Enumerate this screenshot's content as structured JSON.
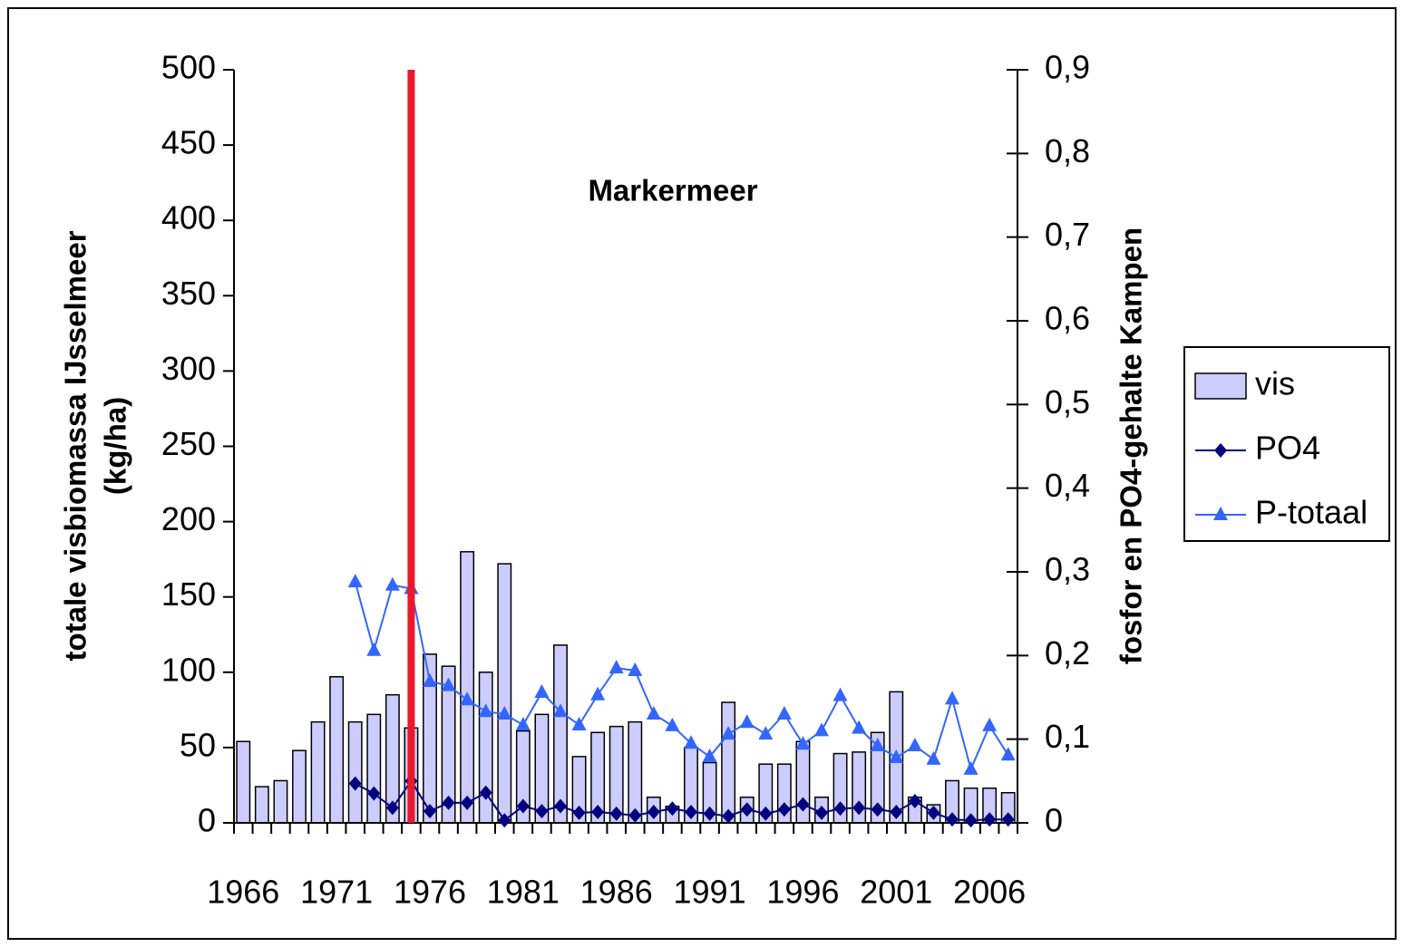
{
  "chart_data": {
    "type": "bar",
    "annotation": "Markermeer",
    "ylabel": [
      "totale visbiomassa IJsselmeer",
      "(kg/ha)"
    ],
    "y2label": "fosfor en PO4-gehalte Kampen",
    "x": [
      1966,
      1967,
      1968,
      1969,
      1970,
      1971,
      1972,
      1973,
      1974,
      1975,
      1976,
      1977,
      1978,
      1979,
      1980,
      1981,
      1982,
      1983,
      1984,
      1985,
      1986,
      1987,
      1988,
      1989,
      1990,
      1991,
      1992,
      1993,
      1994,
      1995,
      1996,
      1997,
      1998,
      1999,
      2000,
      2001,
      2002,
      2003,
      2004,
      2005,
      2006,
      2007
    ],
    "xlim": [
      1965.5,
      2007.5
    ],
    "xticks": [
      1966,
      1971,
      1976,
      1981,
      1986,
      1991,
      1996,
      2001,
      2006
    ],
    "ylim": [
      0,
      500
    ],
    "yticks": [
      0,
      50,
      100,
      150,
      200,
      250,
      300,
      350,
      400,
      450,
      500
    ],
    "y2lim": [
      0,
      0.9
    ],
    "y2ticks": [
      0,
      {
        "value": 0.1,
        "label": "0,1"
      },
      {
        "value": 0.2,
        "label": "0,2"
      },
      {
        "value": 0.3,
        "label": "0,3"
      },
      {
        "value": 0.4,
        "label": "0,4"
      },
      {
        "value": 0.5,
        "label": "0,5"
      },
      {
        "value": 0.6,
        "label": "0,6"
      },
      {
        "value": 0.7,
        "label": "0,7"
      },
      {
        "value": 0.8,
        "label": "0,8"
      },
      {
        "value": 0.9,
        "label": "0,9"
      }
    ],
    "vline": {
      "x": 1975,
      "color": "#e8192c"
    },
    "legend": "right",
    "series": [
      {
        "name": "vis",
        "type": "bar",
        "color": "#ccccff",
        "values": [
          54,
          24,
          28,
          48,
          67,
          97,
          67,
          72,
          85,
          63,
          112,
          104,
          180,
          100,
          172,
          61,
          72,
          118,
          44,
          60,
          64,
          67,
          17,
          11,
          50,
          40,
          80,
          17,
          39,
          39,
          54,
          17,
          46,
          47,
          60,
          87,
          17,
          12,
          28,
          23,
          23,
          20
        ]
      },
      {
        "name": "PO4",
        "type": "line",
        "marker": "diamond",
        "axis": "y2",
        "color": "#000080",
        "values": [
          null,
          null,
          null,
          null,
          null,
          null,
          0.047,
          0.035,
          0.018,
          0.05,
          0.014,
          0.024,
          0.024,
          0.036,
          0.003,
          0.02,
          0.014,
          0.02,
          0.012,
          0.013,
          0.011,
          0.009,
          0.013,
          0.017,
          0.013,
          0.011,
          0.008,
          0.016,
          0.011,
          0.016,
          0.022,
          0.012,
          0.017,
          0.018,
          0.016,
          0.013,
          0.026,
          0.012,
          0.004,
          0.003,
          0.004,
          0.004
        ]
      },
      {
        "name": "P-totaal",
        "type": "line",
        "marker": "triangle",
        "axis": "y2",
        "color": "#3366ff",
        "values": [
          null,
          null,
          null,
          null,
          null,
          null,
          0.288,
          0.206,
          0.284,
          0.28,
          0.169,
          0.164,
          0.147,
          0.133,
          0.13,
          0.117,
          0.156,
          0.133,
          0.117,
          0.153,
          0.185,
          0.182,
          0.13,
          0.116,
          0.095,
          0.079,
          0.106,
          0.12,
          0.106,
          0.13,
          0.094,
          0.11,
          0.152,
          0.113,
          0.092,
          0.078,
          0.092,
          0.076,
          0.148,
          0.064,
          0.116,
          0.081
        ]
      }
    ]
  }
}
